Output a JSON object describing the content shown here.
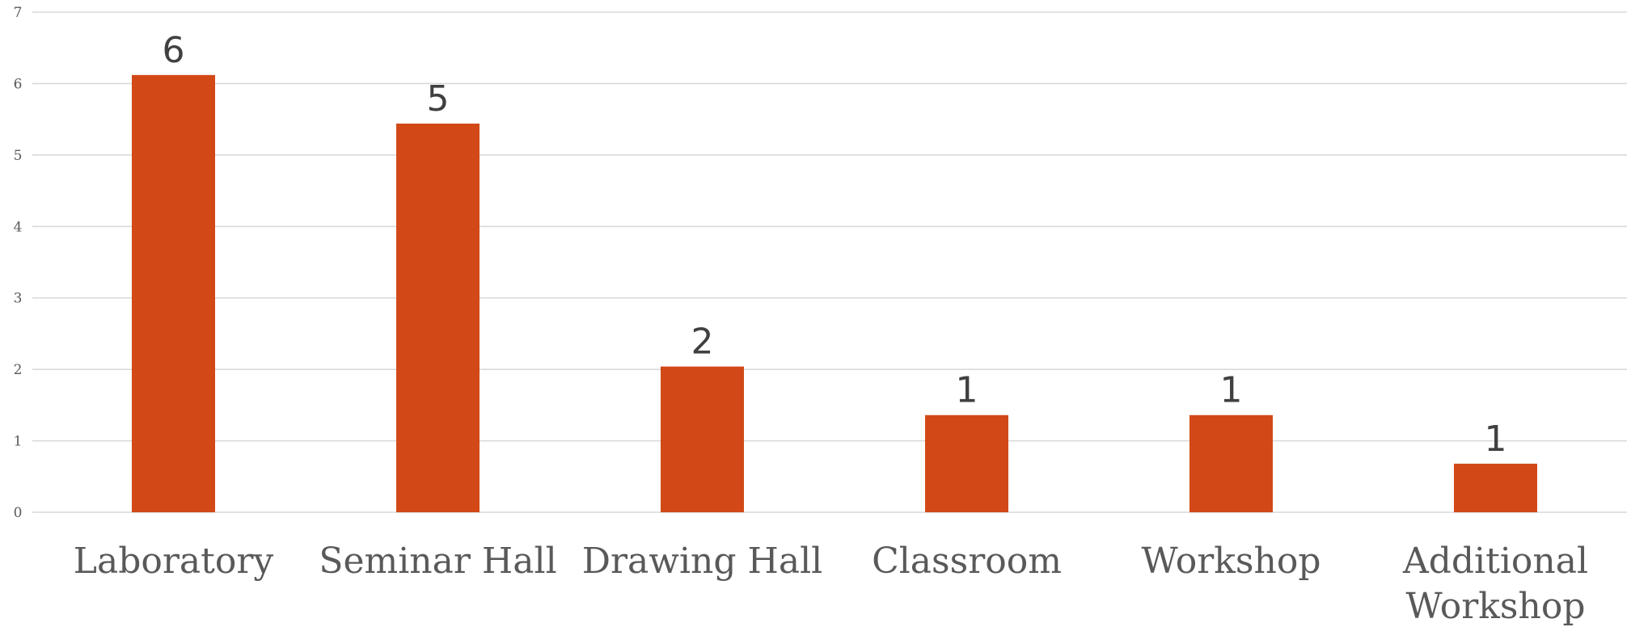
{
  "chart_data": {
    "type": "bar",
    "categories": [
      "Laboratory",
      "Seminar Hall",
      "Drawing Hall",
      "Classroom",
      "Workshop",
      "Additional Workshop"
    ],
    "category_lines": [
      [
        "Laboratory"
      ],
      [
        "Seminar Hall"
      ],
      [
        "Drawing Hall"
      ],
      [
        "Classroom"
      ],
      [
        "Workshop"
      ],
      [
        "Additional",
        "Workshop"
      ]
    ],
    "values": [
      6.12,
      5.44,
      2.04,
      1.36,
      1.36,
      0.68
    ],
    "data_labels": [
      "6",
      "5",
      "2",
      "1",
      "1",
      "1"
    ],
    "yticks": [
      "0",
      "1",
      "2",
      "3",
      "4",
      "5",
      "6",
      "7"
    ],
    "ylim": [
      0,
      7
    ],
    "grid": true,
    "legend": "none",
    "bar_color": "#D24917",
    "grid_color": "#D9D9D9"
  }
}
